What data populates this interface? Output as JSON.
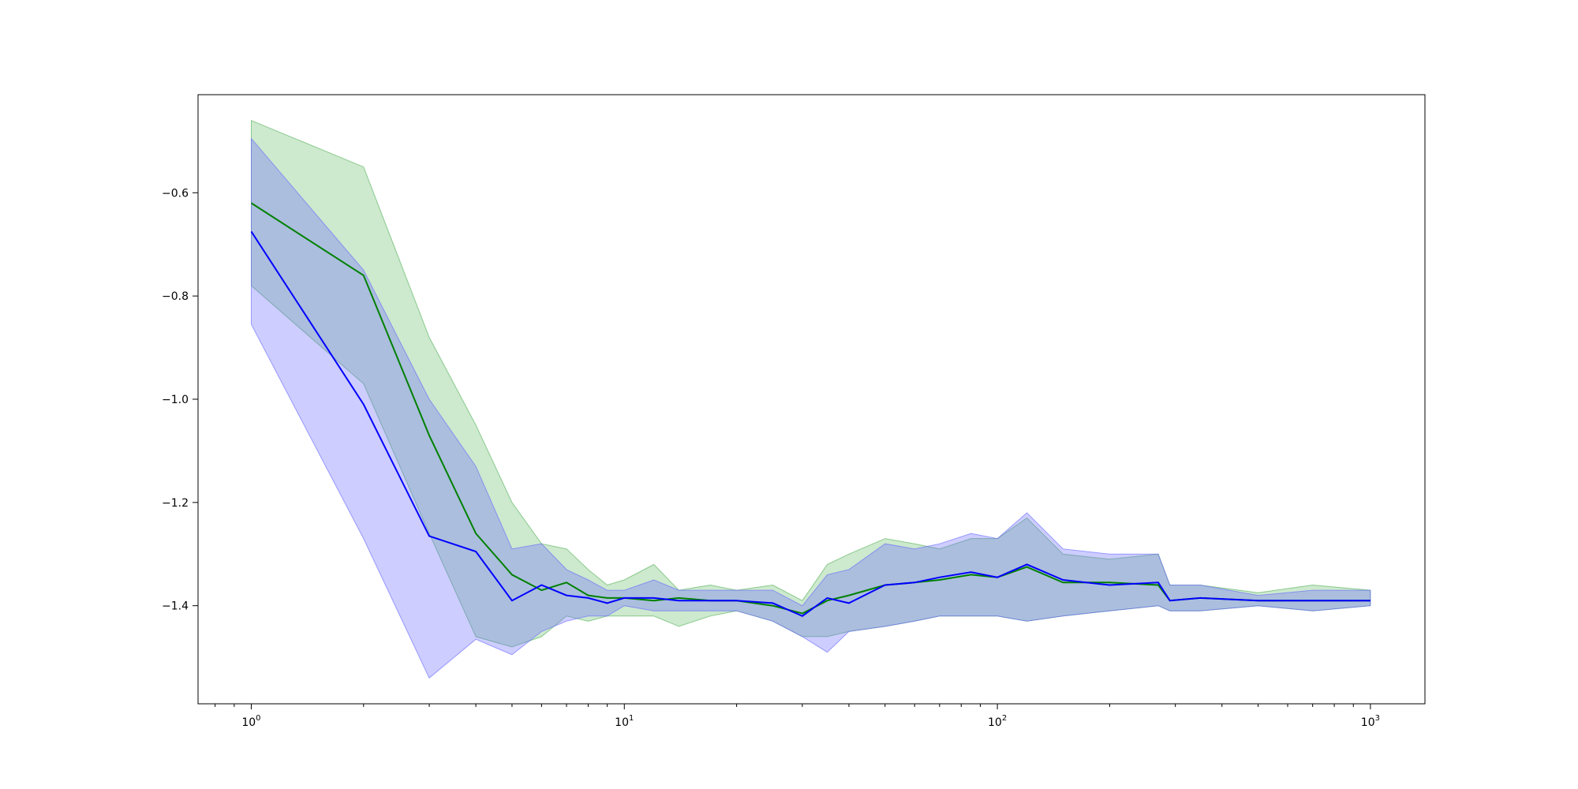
{
  "chart_data": {
    "type": "line",
    "x_scale": "log",
    "xlim": [
      0.72,
      1400
    ],
    "ylim": [
      -1.59,
      -0.41
    ],
    "grid": false,
    "legend": "none",
    "x_ticks": [
      {
        "value": 1,
        "base": "10",
        "exp": "0"
      },
      {
        "value": 10,
        "base": "10",
        "exp": "1"
      },
      {
        "value": 100,
        "base": "10",
        "exp": "2"
      },
      {
        "value": 1000,
        "base": "10",
        "exp": "3"
      }
    ],
    "y_ticks": [
      {
        "value": -0.6,
        "label": "−0.6"
      },
      {
        "value": -0.8,
        "label": "−0.8"
      },
      {
        "value": -1.0,
        "label": "−1.0"
      },
      {
        "value": -1.2,
        "label": "−1.2"
      },
      {
        "value": -1.4,
        "label": "−1.4"
      }
    ],
    "series": [
      {
        "color": "#008000",
        "band_color": "#4CAF50",
        "band_opacity": 0.28,
        "x": [
          1,
          2,
          3,
          4,
          5,
          6,
          7,
          8,
          9,
          10,
          12,
          14,
          17,
          20,
          25,
          30,
          35,
          40,
          50,
          60,
          70,
          85,
          100,
          120,
          150,
          200,
          270,
          290,
          350,
          500,
          700,
          1000
        ],
        "y": [
          -0.62,
          -0.76,
          -1.07,
          -1.26,
          -1.34,
          -1.37,
          -1.355,
          -1.38,
          -1.385,
          -1.385,
          -1.39,
          -1.385,
          -1.39,
          -1.39,
          -1.4,
          -1.415,
          -1.39,
          -1.38,
          -1.36,
          -1.355,
          -1.35,
          -1.34,
          -1.345,
          -1.325,
          -1.355,
          -1.355,
          -1.36,
          -1.39,
          -1.385,
          -1.39,
          -1.39,
          -1.39
        ],
        "upper": [
          -0.46,
          -0.55,
          -0.88,
          -1.05,
          -1.2,
          -1.28,
          -1.29,
          -1.33,
          -1.36,
          -1.35,
          -1.32,
          -1.37,
          -1.36,
          -1.37,
          -1.36,
          -1.39,
          -1.32,
          -1.3,
          -1.27,
          -1.28,
          -1.29,
          -1.27,
          -1.27,
          -1.23,
          -1.3,
          -1.31,
          -1.3,
          -1.36,
          -1.36,
          -1.375,
          -1.36,
          -1.37
        ],
        "lower": [
          -0.78,
          -0.97,
          -1.26,
          -1.46,
          -1.48,
          -1.46,
          -1.42,
          -1.43,
          -1.42,
          -1.42,
          -1.42,
          -1.44,
          -1.42,
          -1.41,
          -1.43,
          -1.46,
          -1.46,
          -1.45,
          -1.44,
          -1.43,
          -1.42,
          -1.42,
          -1.42,
          -1.43,
          -1.42,
          -1.41,
          -1.4,
          -1.41,
          -1.41,
          -1.4,
          -1.41,
          -1.4
        ]
      },
      {
        "color": "#0000FF",
        "band_color": "#6666FF",
        "band_opacity": 0.33,
        "x": [
          1,
          2,
          3,
          4,
          5,
          6,
          7,
          8,
          9,
          10,
          12,
          14,
          17,
          20,
          25,
          30,
          35,
          40,
          50,
          60,
          70,
          85,
          100,
          120,
          150,
          200,
          270,
          290,
          350,
          500,
          700,
          1000
        ],
        "y": [
          -0.675,
          -1.01,
          -1.265,
          -1.295,
          -1.39,
          -1.36,
          -1.38,
          -1.385,
          -1.395,
          -1.385,
          -1.385,
          -1.39,
          -1.39,
          -1.39,
          -1.395,
          -1.42,
          -1.385,
          -1.395,
          -1.36,
          -1.355,
          -1.345,
          -1.335,
          -1.345,
          -1.32,
          -1.35,
          -1.36,
          -1.355,
          -1.39,
          -1.385,
          -1.39,
          -1.39,
          -1.39
        ],
        "upper": [
          -0.495,
          -0.75,
          -1.0,
          -1.13,
          -1.29,
          -1.28,
          -1.33,
          -1.35,
          -1.37,
          -1.37,
          -1.35,
          -1.37,
          -1.37,
          -1.37,
          -1.37,
          -1.4,
          -1.34,
          -1.33,
          -1.28,
          -1.29,
          -1.28,
          -1.26,
          -1.27,
          -1.22,
          -1.29,
          -1.3,
          -1.3,
          -1.36,
          -1.36,
          -1.38,
          -1.37,
          -1.37
        ],
        "lower": [
          -0.855,
          -1.27,
          -1.54,
          -1.465,
          -1.495,
          -1.45,
          -1.43,
          -1.42,
          -1.42,
          -1.4,
          -1.41,
          -1.41,
          -1.41,
          -1.41,
          -1.43,
          -1.46,
          -1.49,
          -1.45,
          -1.44,
          -1.43,
          -1.42,
          -1.42,
          -1.42,
          -1.43,
          -1.42,
          -1.41,
          -1.4,
          -1.41,
          -1.41,
          -1.4,
          -1.41,
          -1.4
        ]
      }
    ]
  }
}
